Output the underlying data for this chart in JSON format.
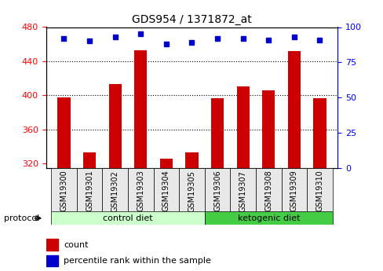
{
  "title": "GDS954 / 1371872_at",
  "samples": [
    "GSM19300",
    "GSM19301",
    "GSM19302",
    "GSM19303",
    "GSM19304",
    "GSM19305",
    "GSM19306",
    "GSM19307",
    "GSM19308",
    "GSM19309",
    "GSM19310"
  ],
  "counts": [
    398,
    333,
    413,
    453,
    326,
    333,
    397,
    411,
    406,
    452,
    397
  ],
  "percentile_ranks": [
    92,
    90,
    93,
    95,
    88,
    89,
    92,
    92,
    91,
    93,
    91
  ],
  "ylim_left": [
    315,
    480
  ],
  "ylim_right": [
    0,
    100
  ],
  "yticks_left": [
    320,
    360,
    400,
    440,
    480
  ],
  "yticks_right": [
    0,
    25,
    50,
    75,
    100
  ],
  "bar_color": "#cc0000",
  "dot_color": "#0000cc",
  "grid_color": "#000000",
  "protocol_groups": [
    {
      "label": "control diet",
      "samples": [
        "GSM19300",
        "GSM19301",
        "GSM19302",
        "GSM19303",
        "GSM19304",
        "GSM19305"
      ],
      "color": "#ccffcc"
    },
    {
      "label": "ketogenic diet",
      "samples": [
        "GSM19306",
        "GSM19307",
        "GSM19308",
        "GSM19309",
        "GSM19310"
      ],
      "color": "#44cc44"
    }
  ],
  "protocol_label": "protocol",
  "bg_color": "#e8e8e8",
  "plot_bg": "#ffffff",
  "legend_count_label": "count",
  "legend_pct_label": "percentile rank within the sample"
}
